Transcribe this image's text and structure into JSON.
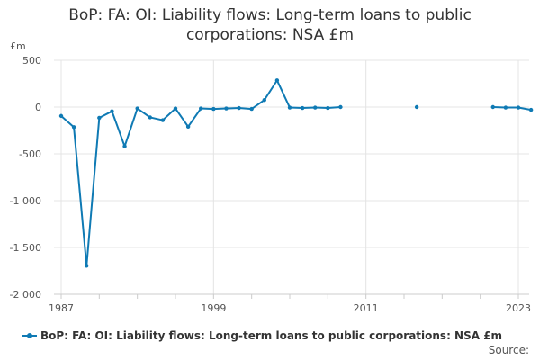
{
  "title_line1": "BoP: FA: OI: Liability flows: Long-term loans to public",
  "title_line2": "corporations: NSA £m",
  "source_label": "Source:",
  "chart_data": {
    "type": "line",
    "title": "BoP: FA: OI: Liability flows: Long-term loans to public corporations: NSA £m",
    "ylabel": "£m",
    "xlabel": "",
    "ylim": [
      -2000,
      500
    ],
    "xlim": [
      1987,
      2023
    ],
    "yticks": [
      500,
      0,
      -500,
      -1000,
      -1500,
      -2000
    ],
    "ytick_labels": [
      "500",
      "0",
      "-500",
      "-1 000",
      "-1 500",
      "-2 000"
    ],
    "xticks": [
      1987,
      1999,
      2011,
      2023
    ],
    "xtick_labels": [
      "1987",
      "1999",
      "2011",
      "2023"
    ],
    "grid": true,
    "legend_position": "bottom",
    "color": "#0f7ab4",
    "series": [
      {
        "name": "BoP: FA: OI: Liability flows: Long-term loans to public corporations: NSA £m",
        "points": [
          [
            1987,
            -95
          ],
          [
            1988,
            -215
          ],
          [
            1989,
            -1695
          ],
          [
            1990,
            -115
          ],
          [
            1991,
            -45
          ],
          [
            1992,
            -420
          ],
          [
            1993,
            -15
          ],
          [
            1994,
            -110
          ],
          [
            1995,
            -140
          ],
          [
            1996,
            -15
          ],
          [
            1997,
            -210
          ],
          [
            1998,
            -15
          ],
          [
            1999,
            -20
          ],
          [
            2000,
            -15
          ],
          [
            2001,
            -10
          ],
          [
            2002,
            -20
          ],
          [
            2003,
            75
          ],
          [
            2004,
            285
          ],
          [
            2005,
            -5
          ],
          [
            2006,
            -10
          ],
          [
            2007,
            -5
          ],
          [
            2008,
            -10
          ],
          [
            2009,
            0
          ],
          null,
          [
            2015,
            0
          ],
          null,
          [
            2021,
            0
          ],
          [
            2022,
            -5
          ],
          [
            2023,
            -5
          ],
          [
            2024,
            -30
          ]
        ]
      }
    ]
  }
}
